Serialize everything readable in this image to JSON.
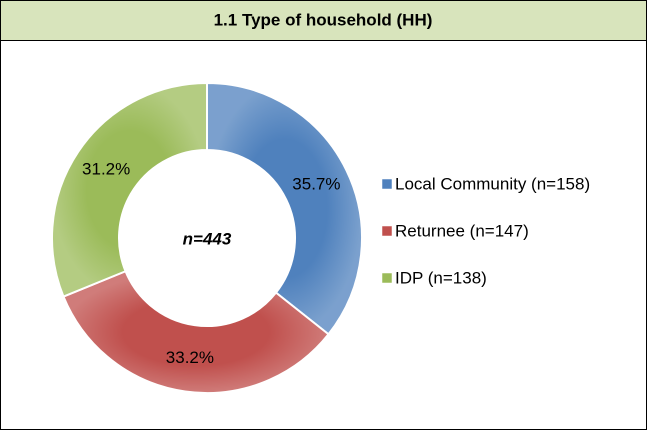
{
  "chart_data": {
    "type": "donut",
    "title": "1.1 Type of household (HH)",
    "center_label": "n=443",
    "categories": [
      "Local Community (n=158)",
      "Returnee (n=147)",
      "IDP (n=138)"
    ],
    "values": [
      35.7,
      33.2,
      31.2
    ],
    "value_labels": [
      "35.7%",
      "33.2%",
      "31.2%"
    ],
    "colors": [
      "#4f81bd",
      "#c0504d",
      "#9bbb59"
    ],
    "legend": "right"
  }
}
